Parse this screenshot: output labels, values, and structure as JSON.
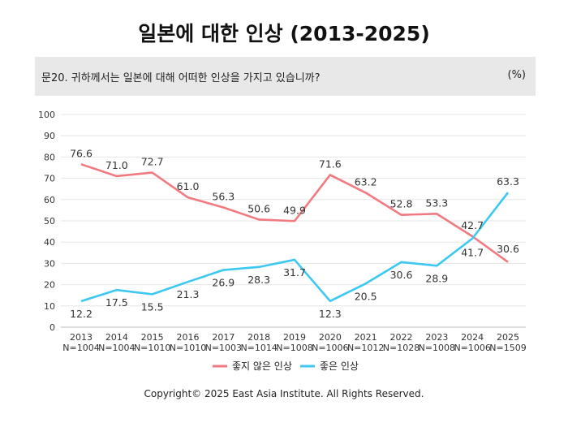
{
  "chart_data": {
    "type": "line",
    "title": "일본에 대한 인상 (2013-2025)",
    "question": "문20. 귀하께서는 일본에 대해 어떠한 인상을 가지고 있습니까?",
    "unit": "(%)",
    "categories": [
      "2013",
      "2014",
      "2015",
      "2016",
      "2017",
      "2018",
      "2019",
      "2020",
      "2021",
      "2022",
      "2023",
      "2024",
      "2025"
    ],
    "sample_sizes": [
      "N=1004",
      "N=1004",
      "N=1010",
      "N=1010",
      "N=1003",
      "N=1014",
      "N=1008",
      "N=1006",
      "N=1012",
      "N=1028",
      "N=1008",
      "N=1006",
      "N=1509"
    ],
    "ylim": [
      0,
      100
    ],
    "yticks": [
      0,
      10,
      20,
      30,
      40,
      50,
      60,
      70,
      80,
      90,
      100
    ],
    "series": [
      {
        "name": "좋지 않은 인상",
        "color": "#f07a80",
        "values": [
          76.6,
          71.0,
          72.7,
          61.0,
          56.3,
          50.6,
          49.9,
          71.6,
          63.2,
          52.8,
          53.3,
          42.7,
          30.6
        ],
        "labels": [
          "76.6",
          "71.0",
          "72.7",
          "61.0",
          "56.3",
          "50.6",
          "49.9",
          "71.6",
          "63.2",
          "52.8",
          "53.3",
          "42.7",
          "30.6"
        ]
      },
      {
        "name": "좋은 인상",
        "color": "#3cc8f0",
        "values": [
          12.2,
          17.5,
          15.5,
          21.3,
          26.9,
          28.3,
          31.7,
          12.3,
          20.5,
          30.6,
          28.9,
          41.7,
          63.3
        ],
        "labels": [
          "12.2",
          "17.5",
          "15.5",
          "21.3",
          "26.9",
          "28.3",
          "31.7",
          "12.3",
          "20.5",
          "30.6",
          "28.9",
          "41.7",
          "63.3"
        ]
      }
    ],
    "grid": true,
    "legend": "bottom-center"
  },
  "footer": "Copyright© 2025 East Asia Institute. All Rights Reserved."
}
